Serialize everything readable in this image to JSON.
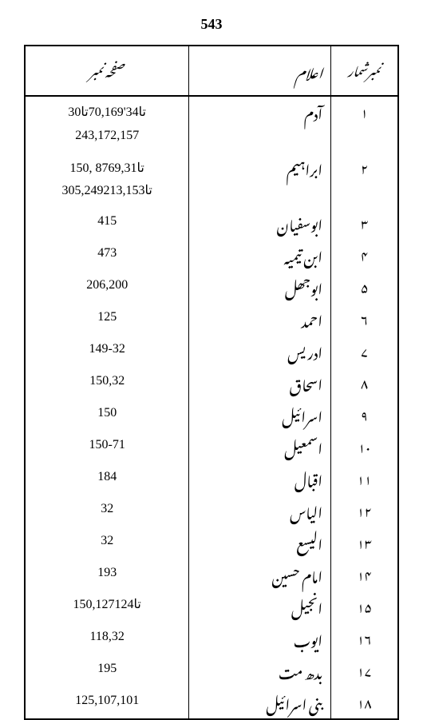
{
  "pageNumber": "543",
  "headers": {
    "col1": "صفحہ نمبر",
    "col2": "اعلام",
    "col3": "نمبرشمار"
  },
  "rows": [
    {
      "pages": "30تا34'70,169تا 243,172,157",
      "name": "آدم",
      "num": "۱"
    },
    {
      "pages": "150, 87تا69,31 305,249تا213,153",
      "name": "ابراہیم",
      "num": "۲"
    },
    {
      "pages": "415",
      "name": "ابوسفیان",
      "num": "۳"
    },
    {
      "pages": "473",
      "name": "ابن تیمیہ",
      "num": "۴"
    },
    {
      "pages": "206,200",
      "name": "ابوجھل",
      "num": "۵"
    },
    {
      "pages": "125",
      "name": "احمد",
      "num": "۶"
    },
    {
      "pages": "149-32",
      "name": "ادریس",
      "num": "۷"
    },
    {
      "pages": "150,32",
      "name": "اسحاق",
      "num": "۸"
    },
    {
      "pages": "150",
      "name": "اسرائیل",
      "num": "۹"
    },
    {
      "pages": "150-71",
      "name": "اسمعیل",
      "num": "۱۰"
    },
    {
      "pages": "184",
      "name": "اقبال",
      "num": "۱۱"
    },
    {
      "pages": "32",
      "name": "الیاس",
      "num": "۱۲"
    },
    {
      "pages": "32",
      "name": "الیسع",
      "num": "۱۳"
    },
    {
      "pages": "193",
      "name": "امام حسین",
      "num": "۱۴"
    },
    {
      "pages": "150,127تا124",
      "name": "انجیل",
      "num": "۱۵"
    },
    {
      "pages": "118,32",
      "name": "ایوب",
      "num": "۱۶"
    },
    {
      "pages": "195",
      "name": "بدھ مت",
      "num": "۱۷"
    },
    {
      "pages": "125,107,101",
      "name": "بنی اسرائیل",
      "num": "۱۸"
    }
  ]
}
